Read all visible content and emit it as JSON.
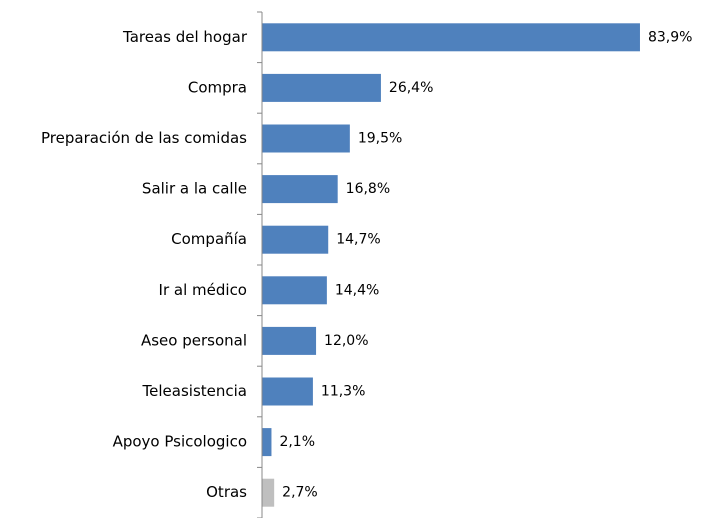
{
  "chart_data": {
    "type": "bar",
    "orientation": "horizontal",
    "categories": [
      "Tareas del hogar",
      "Compra",
      "Preparación de las comidas",
      "Salir a la calle",
      "Compañía",
      "Ir al médico",
      "Aseo personal",
      "Teleasistencia",
      "Apoyo Psicologico",
      "Otras"
    ],
    "values": [
      83.9,
      26.4,
      19.5,
      16.8,
      14.7,
      14.4,
      12.0,
      11.3,
      2.1,
      2.7
    ],
    "value_labels": [
      "83,9%",
      "26,4%",
      "19,5%",
      "16,8%",
      "14,7%",
      "14,4%",
      "12,0%",
      "11,3%",
      "2,1%",
      "2,7%"
    ],
    "colors": [
      "#4f81bd",
      "#4f81bd",
      "#4f81bd",
      "#4f81bd",
      "#4f81bd",
      "#4f81bd",
      "#4f81bd",
      "#4f81bd",
      "#4f81bd",
      "#bfbfbf"
    ]
  }
}
